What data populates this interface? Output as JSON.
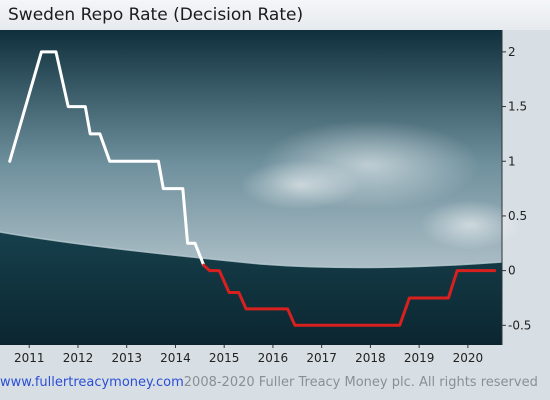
{
  "footer": {
    "link": "www.fullertreacymoney.com",
    "copyright": "2008-2020 Fuller Treacy Money plc. All rights reserved"
  },
  "chart_data": {
    "type": "line",
    "title": "Sweden Repo Rate (Decision Rate)",
    "xlabel": "",
    "ylabel": "",
    "xlim": [
      2010.6,
      2020.9
    ],
    "ylim": [
      -0.68,
      2.2
    ],
    "grid": false,
    "legend": "none",
    "x_ticks": [
      {
        "value": 2011.2,
        "label": "2011"
      },
      {
        "value": 2012.2,
        "label": "2012"
      },
      {
        "value": 2013.2,
        "label": "2013"
      },
      {
        "value": 2014.2,
        "label": "2014"
      },
      {
        "value": 2015.2,
        "label": "2015"
      },
      {
        "value": 2016.2,
        "label": "2016"
      },
      {
        "value": 2017.2,
        "label": "2017"
      },
      {
        "value": 2018.2,
        "label": "2018"
      },
      {
        "value": 2019.2,
        "label": "2019"
      },
      {
        "value": 2020.2,
        "label": "2020"
      }
    ],
    "y_ticks": [
      {
        "value": 2,
        "label": "2"
      },
      {
        "value": 1.5,
        "label": "1.5"
      },
      {
        "value": 1,
        "label": "1"
      },
      {
        "value": 0.5,
        "label": "0.5"
      },
      {
        "value": 0,
        "label": "0"
      },
      {
        "value": -0.5,
        "label": "-0.5"
      }
    ],
    "series": [
      {
        "color": "#ffffff",
        "points": [
          [
            2010.8,
            1.0
          ],
          [
            2011.45,
            2.0
          ],
          [
            2011.75,
            2.0
          ],
          [
            2012.0,
            1.5
          ],
          [
            2012.35,
            1.5
          ],
          [
            2012.45,
            1.25
          ],
          [
            2012.65,
            1.25
          ],
          [
            2012.85,
            1.0
          ],
          [
            2013.85,
            1.0
          ],
          [
            2013.95,
            0.75
          ],
          [
            2014.35,
            0.75
          ],
          [
            2014.45,
            0.25
          ],
          [
            2014.6,
            0.25
          ],
          [
            2014.78,
            0.05
          ]
        ]
      },
      {
        "color": "#d8201f",
        "points": [
          [
            2014.78,
            0.05
          ],
          [
            2014.9,
            0.0
          ],
          [
            2015.1,
            0.0
          ],
          [
            2015.3,
            -0.2
          ],
          [
            2015.5,
            -0.2
          ],
          [
            2015.65,
            -0.35
          ],
          [
            2016.5,
            -0.35
          ],
          [
            2016.65,
            -0.5
          ],
          [
            2018.8,
            -0.5
          ],
          [
            2019.0,
            -0.25
          ],
          [
            2019.8,
            -0.25
          ],
          [
            2019.98,
            0.0
          ],
          [
            2020.75,
            0.0
          ]
        ]
      }
    ],
    "colors": {
      "sky_top": "#0f2f3c",
      "sky_mid": "#6d8f9c",
      "sky_bottom": "#adbfc7",
      "sea_top": "#16404c",
      "sea_bottom": "#0b2630"
    }
  }
}
